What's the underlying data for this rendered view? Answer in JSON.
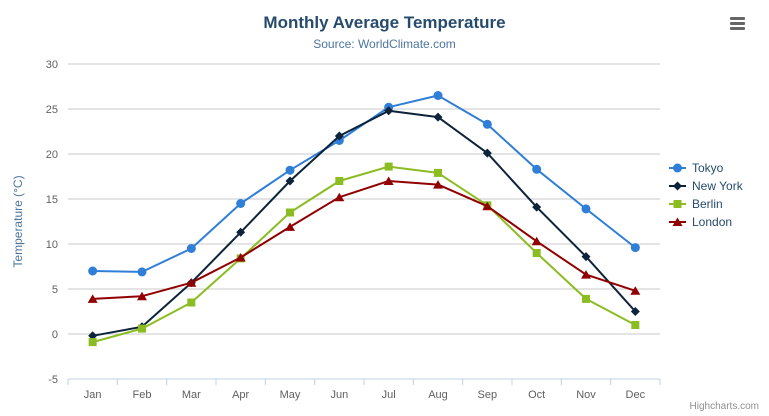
{
  "header": {
    "title": "Monthly Average Temperature",
    "subtitle": "Source: WorldClimate.com"
  },
  "credits_label": "Highcharts.com",
  "menu_icon": "hamburger-icon",
  "colors": {
    "title": "#274b6d",
    "subtitle": "#4d759e",
    "axis_title": "#4d759e",
    "axis_label": "#606060",
    "grid_line": "#c8c8c8",
    "axis_line": "#c0d0e0",
    "tick": "#c0d0e0",
    "legend_text": "#274b6d",
    "credits_text": "#909090"
  },
  "chart_data": {
    "type": "line",
    "title": "Monthly Average Temperature",
    "subtitle": "Source: WorldClimate.com",
    "categories": [
      "Jan",
      "Feb",
      "Mar",
      "Apr",
      "May",
      "Jun",
      "Jul",
      "Aug",
      "Sep",
      "Oct",
      "Nov",
      "Dec"
    ],
    "xlabel": "",
    "ylabel": "Temperature (°C)",
    "ylim": [
      -5,
      30
    ],
    "ytick_step": 5,
    "grid": "horizontal-only",
    "legend_position": "right",
    "series": [
      {
        "name": "Tokyo",
        "color": "#2f7ed8",
        "marker": "circle",
        "values": [
          7.0,
          6.9,
          9.5,
          14.5,
          18.2,
          21.5,
          25.2,
          26.5,
          23.3,
          18.3,
          13.9,
          9.6
        ]
      },
      {
        "name": "New York",
        "color": "#0d233a",
        "marker": "diamond",
        "values": [
          -0.2,
          0.8,
          5.7,
          11.3,
          17.0,
          22.0,
          24.8,
          24.1,
          20.1,
          14.1,
          8.6,
          2.5
        ]
      },
      {
        "name": "Berlin",
        "color": "#8bbc21",
        "marker": "square",
        "values": [
          -0.9,
          0.6,
          3.5,
          8.4,
          13.5,
          17.0,
          18.6,
          17.9,
          14.3,
          9.0,
          3.9,
          1.0
        ]
      },
      {
        "name": "London",
        "color": "#910000",
        "marker": "triangle",
        "values": [
          3.9,
          4.2,
          5.7,
          8.5,
          11.9,
          15.2,
          17.0,
          16.6,
          14.2,
          10.3,
          6.6,
          4.8
        ]
      }
    ]
  }
}
